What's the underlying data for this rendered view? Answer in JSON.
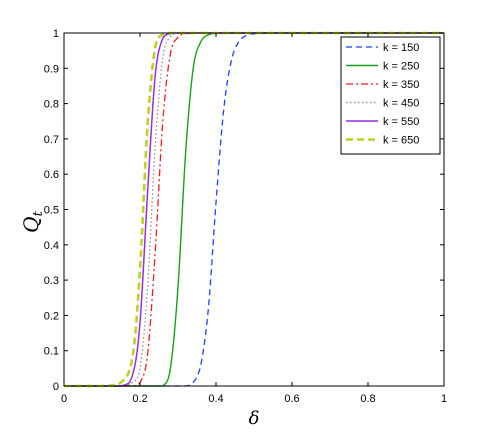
{
  "chart_data": {
    "type": "line",
    "title": "",
    "xlabel": "δ",
    "ylabel": "Q",
    "ylabel_sub": "t",
    "xlim": [
      0,
      1
    ],
    "ylim": [
      0,
      1
    ],
    "xticks": [
      "0",
      "0.2",
      "0.4",
      "0.6",
      "0.8",
      "1"
    ],
    "yticks": [
      "0",
      "0.1",
      "0.2",
      "0.3",
      "0.4",
      "0.5",
      "0.6",
      "0.7",
      "0.8",
      "0.9",
      "1"
    ],
    "grid": false,
    "legend_position": "top-right",
    "x": [
      0.0,
      0.1,
      0.15,
      0.18,
      0.2,
      0.22,
      0.24,
      0.26,
      0.28,
      0.3,
      0.32,
      0.34,
      0.36,
      0.38,
      0.4,
      0.42,
      0.44,
      0.46,
      0.48,
      0.5,
      0.55,
      0.6,
      0.7,
      0.8,
      0.9,
      1.0
    ],
    "series": [
      {
        "name": "k = 150",
        "color": "#1f3fff",
        "dash": "6,4",
        "width": 1.3,
        "values": [
          0,
          0,
          0,
          0,
          0,
          0,
          0,
          0,
          0,
          0,
          0.0,
          0.01,
          0.06,
          0.22,
          0.52,
          0.78,
          0.92,
          0.975,
          0.993,
          0.998,
          1,
          1,
          1,
          1,
          1,
          1
        ]
      },
      {
        "name": "k = 250",
        "color": "#1aa01a",
        "dash": "",
        "width": 1.4,
        "values": [
          0,
          0,
          0,
          0,
          0,
          0,
          0,
          0.0,
          0.05,
          0.28,
          0.66,
          0.9,
          0.975,
          0.995,
          0.999,
          1,
          1,
          1,
          1,
          1,
          1,
          1,
          1,
          1,
          1,
          1
        ]
      },
      {
        "name": "k = 350",
        "color": "#ee1c1c",
        "dash": "7,3,2,3",
        "width": 1.3,
        "values": [
          0,
          0,
          0,
          0,
          0.01,
          0.09,
          0.38,
          0.75,
          0.94,
          0.988,
          0.998,
          1,
          1,
          1,
          1,
          1,
          1,
          1,
          1,
          1,
          1,
          1,
          1,
          1,
          1,
          1
        ]
      },
      {
        "name": "k = 450",
        "color": "#888888",
        "dash": "1.5,2.5",
        "width": 1.2,
        "values": [
          0,
          0,
          0,
          0.01,
          0.05,
          0.28,
          0.68,
          0.93,
          0.99,
          0.999,
          1,
          1,
          1,
          1,
          1,
          1,
          1,
          1,
          1,
          1,
          1,
          1,
          1,
          1,
          1,
          1
        ]
      },
      {
        "name": "k = 550",
        "color": "#9a2be2",
        "dash": "",
        "width": 1.5,
        "values": [
          0,
          0,
          0,
          0.03,
          0.18,
          0.55,
          0.88,
          0.985,
          0.998,
          1,
          1,
          1,
          1,
          1,
          1,
          1,
          1,
          1,
          1,
          1,
          1,
          1,
          1,
          1,
          1,
          1
        ]
      },
      {
        "name": "k = 650",
        "color": "#b8d41e",
        "dash": "7,4",
        "width": 2.6,
        "values": [
          0,
          0,
          0.01,
          0.08,
          0.33,
          0.74,
          0.96,
          0.996,
          1,
          1,
          1,
          1,
          1,
          1,
          1,
          1,
          1,
          1,
          1,
          1,
          1,
          1,
          1,
          1,
          1,
          1
        ]
      }
    ]
  }
}
